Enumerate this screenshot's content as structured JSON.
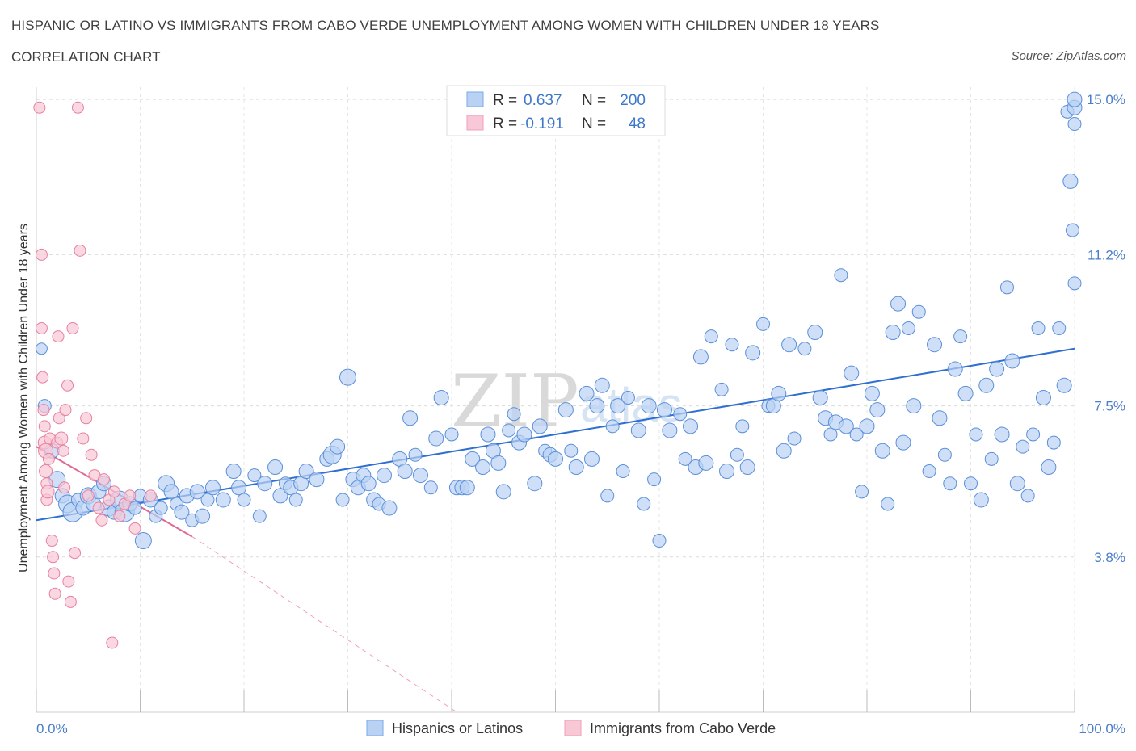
{
  "header": {
    "title": "HISPANIC OR LATINO VS IMMIGRANTS FROM CABO VERDE UNEMPLOYMENT AMONG WOMEN WITH CHILDREN UNDER 18 YEARS",
    "subtitle": "CORRELATION CHART",
    "source": "Source: ZipAtlas.com"
  },
  "watermark": {
    "zip": "ZIP",
    "atlas": "atlas"
  },
  "legend": {
    "r_label": "R =",
    "n_label": "N =",
    "series": [
      {
        "r": "0.637",
        "n": "200",
        "color": "#7aaae8",
        "fill": "#b9d1f3"
      },
      {
        "r": "-0.191",
        "n": "48",
        "color": "#f0a0b8",
        "fill": "#f8c8d6"
      }
    ]
  },
  "chart_data": {
    "type": "scatter",
    "title": "HISPANIC OR LATINO VS IMMIGRANTS FROM CABO VERDE UNEMPLOYMENT AMONG WOMEN WITH CHILDREN UNDER 18 YEARS",
    "xlabel": "",
    "ylabel": "Unemployment Among Women with Children Under 18 years",
    "x_tick_labels": [
      "0.0%",
      "100.0%"
    ],
    "y_tick_labels": [
      "3.8%",
      "7.5%",
      "11.2%",
      "15.0%"
    ],
    "y_ticks": [
      3.8,
      7.5,
      11.2,
      15.0
    ],
    "xlim": [
      0,
      100
    ],
    "ylim": [
      0,
      15.3
    ],
    "grid": true,
    "legend_placement": "bottom",
    "series": [
      {
        "name": "Hispanics or Latinos",
        "color": "#5b8fd9",
        "fill": "#b9d1f3",
        "trend": {
          "x0": 0,
          "y0": 4.7,
          "x1": 100,
          "y1": 8.9
        },
        "points": [
          [
            0.5,
            8.9,
            7
          ],
          [
            0.8,
            7.5,
            8
          ],
          [
            1.5,
            6.4,
            9
          ],
          [
            2,
            5.7,
            10
          ],
          [
            2.5,
            5.3,
            9
          ],
          [
            3,
            5.1,
            11
          ],
          [
            3.5,
            4.9,
            12
          ],
          [
            4,
            5.2,
            8
          ],
          [
            4.5,
            5.0,
            9
          ],
          [
            5,
            5.3,
            10
          ],
          [
            5.5,
            5.1,
            9
          ],
          [
            6,
            5.4,
            9
          ],
          [
            6.5,
            5.6,
            9
          ],
          [
            7,
            5.0,
            10
          ],
          [
            7.5,
            4.9,
            9
          ],
          [
            8,
            5.2,
            11
          ],
          [
            8.5,
            4.9,
            12
          ],
          [
            9,
            5.1,
            9
          ],
          [
            9.5,
            5.0,
            8
          ],
          [
            10,
            5.3,
            8
          ],
          [
            10.3,
            4.2,
            10
          ],
          [
            11,
            5.2,
            9
          ],
          [
            11.5,
            4.8,
            8
          ],
          [
            12,
            5.0,
            8
          ],
          [
            12.5,
            5.6,
            10
          ],
          [
            13,
            5.4,
            9
          ],
          [
            13.5,
            5.1,
            8
          ],
          [
            14,
            4.9,
            9
          ],
          [
            14.5,
            5.3,
            9
          ],
          [
            15,
            4.7,
            8
          ],
          [
            15.5,
            5.4,
            9
          ],
          [
            16,
            4.8,
            9
          ],
          [
            16.5,
            5.2,
            8
          ],
          [
            17,
            5.5,
            9
          ],
          [
            18,
            5.2,
            9
          ],
          [
            19,
            5.9,
            9
          ],
          [
            19.5,
            5.5,
            9
          ],
          [
            20,
            5.2,
            8
          ],
          [
            21,
            5.8,
            8
          ],
          [
            21.5,
            4.8,
            8
          ],
          [
            22,
            5.6,
            9
          ],
          [
            23,
            6.0,
            9
          ],
          [
            23.5,
            5.3,
            9
          ],
          [
            24,
            5.6,
            8
          ],
          [
            24.5,
            5.5,
            9
          ],
          [
            25,
            5.2,
            8
          ],
          [
            25.5,
            5.6,
            9
          ],
          [
            26,
            5.9,
            9
          ],
          [
            27,
            5.7,
            9
          ],
          [
            28,
            6.2,
            9
          ],
          [
            28.5,
            6.3,
            11
          ],
          [
            29,
            6.5,
            9
          ],
          [
            29.5,
            5.2,
            8
          ],
          [
            30,
            8.2,
            10
          ],
          [
            30.5,
            5.7,
            9
          ],
          [
            31,
            5.5,
            9
          ],
          [
            31.5,
            5.8,
            9
          ],
          [
            32,
            5.6,
            9
          ],
          [
            32.5,
            5.2,
            9
          ],
          [
            33,
            5.1,
            8
          ],
          [
            33.5,
            5.8,
            9
          ],
          [
            34,
            5.0,
            9
          ],
          [
            35,
            6.2,
            9
          ],
          [
            35.5,
            5.9,
            9
          ],
          [
            36,
            7.2,
            9
          ],
          [
            36.5,
            6.3,
            8
          ],
          [
            37,
            5.8,
            9
          ],
          [
            38,
            5.5,
            8
          ],
          [
            38.5,
            6.7,
            9
          ],
          [
            39,
            7.7,
            9
          ],
          [
            40,
            6.8,
            8
          ],
          [
            40.5,
            5.5,
            9
          ],
          [
            41,
            5.5,
            9
          ],
          [
            41.5,
            5.5,
            9
          ],
          [
            42,
            6.2,
            9
          ],
          [
            43,
            6.0,
            9
          ],
          [
            43.5,
            6.8,
            9
          ],
          [
            44,
            6.4,
            9
          ],
          [
            44.5,
            6.1,
            9
          ],
          [
            45,
            5.4,
            9
          ],
          [
            45.5,
            6.9,
            8
          ],
          [
            46,
            7.3,
            8
          ],
          [
            46.5,
            6.6,
            9
          ],
          [
            47,
            6.8,
            9
          ],
          [
            48,
            5.6,
            9
          ],
          [
            48.5,
            7.0,
            9
          ],
          [
            49,
            6.4,
            8
          ],
          [
            49.5,
            6.3,
            9
          ],
          [
            50,
            6.2,
            9
          ],
          [
            51,
            7.4,
            9
          ],
          [
            51.5,
            6.4,
            8
          ],
          [
            52,
            6.0,
            9
          ],
          [
            53,
            7.8,
            9
          ],
          [
            53.5,
            6.2,
            9
          ],
          [
            54,
            7.5,
            9
          ],
          [
            54.5,
            8.0,
            9
          ],
          [
            55,
            5.3,
            8
          ],
          [
            55.5,
            7.0,
            8
          ],
          [
            56,
            7.5,
            9
          ],
          [
            56.5,
            5.9,
            8
          ],
          [
            57,
            7.7,
            8
          ],
          [
            58,
            6.9,
            9
          ],
          [
            58.5,
            5.1,
            8
          ],
          [
            59,
            7.5,
            9
          ],
          [
            59.5,
            5.7,
            8
          ],
          [
            60,
            4.2,
            8
          ],
          [
            60.5,
            7.4,
            9
          ],
          [
            61,
            6.9,
            9
          ],
          [
            62,
            7.3,
            8
          ],
          [
            62.5,
            6.2,
            8
          ],
          [
            63,
            7.0,
            9
          ],
          [
            63.5,
            6.0,
            9
          ],
          [
            64,
            8.7,
            9
          ],
          [
            64.5,
            6.1,
            9
          ],
          [
            65,
            9.2,
            8
          ],
          [
            66,
            7.9,
            8
          ],
          [
            66.5,
            5.9,
            9
          ],
          [
            67,
            9.0,
            8
          ],
          [
            67.5,
            6.3,
            8
          ],
          [
            68,
            7.0,
            8
          ],
          [
            68.5,
            6.0,
            9
          ],
          [
            69,
            8.8,
            9
          ],
          [
            70,
            9.5,
            8
          ],
          [
            70.5,
            7.5,
            8
          ],
          [
            71,
            7.5,
            9
          ],
          [
            71.5,
            7.8,
            9
          ],
          [
            72,
            6.4,
            9
          ],
          [
            72.5,
            9.0,
            9
          ],
          [
            73,
            6.7,
            8
          ],
          [
            74,
            8.9,
            8
          ],
          [
            75,
            9.3,
            9
          ],
          [
            75.5,
            7.7,
            9
          ],
          [
            76,
            7.2,
            9
          ],
          [
            76.5,
            6.8,
            8
          ],
          [
            77,
            7.1,
            9
          ],
          [
            77.5,
            10.7,
            8
          ],
          [
            78,
            7.0,
            9
          ],
          [
            78.5,
            8.3,
            9
          ],
          [
            79,
            6.8,
            8
          ],
          [
            79.5,
            5.4,
            8
          ],
          [
            80,
            7.0,
            9
          ],
          [
            80.5,
            7.8,
            9
          ],
          [
            81,
            7.4,
            9
          ],
          [
            81.5,
            6.4,
            9
          ],
          [
            82,
            5.1,
            8
          ],
          [
            82.5,
            9.3,
            9
          ],
          [
            83,
            10.0,
            9
          ],
          [
            83.5,
            6.6,
            9
          ],
          [
            84,
            9.4,
            8
          ],
          [
            84.5,
            7.5,
            9
          ],
          [
            85,
            9.8,
            8
          ],
          [
            86,
            5.9,
            8
          ],
          [
            86.5,
            9.0,
            9
          ],
          [
            87,
            7.2,
            9
          ],
          [
            87.5,
            6.3,
            8
          ],
          [
            88,
            5.6,
            8
          ],
          [
            88.5,
            8.4,
            9
          ],
          [
            89,
            9.2,
            8
          ],
          [
            89.5,
            7.8,
            9
          ],
          [
            90,
            5.6,
            8
          ],
          [
            90.5,
            6.8,
            8
          ],
          [
            91,
            5.2,
            9
          ],
          [
            91.5,
            8.0,
            9
          ],
          [
            92,
            6.2,
            8
          ],
          [
            92.5,
            8.4,
            9
          ],
          [
            93,
            6.8,
            9
          ],
          [
            93.5,
            10.4,
            8
          ],
          [
            94,
            8.6,
            9
          ],
          [
            94.5,
            5.6,
            9
          ],
          [
            95,
            6.5,
            8
          ],
          [
            95.5,
            5.3,
            8
          ],
          [
            96,
            6.8,
            8
          ],
          [
            96.5,
            9.4,
            8
          ],
          [
            97,
            7.7,
            9
          ],
          [
            97.5,
            6.0,
            9
          ],
          [
            98,
            6.6,
            8
          ],
          [
            98.5,
            9.4,
            8
          ],
          [
            99,
            8.0,
            9
          ],
          [
            99.3,
            14.7,
            8
          ],
          [
            99.6,
            13.0,
            9
          ],
          [
            99.8,
            11.8,
            8
          ],
          [
            100,
            10.5,
            8
          ],
          [
            100,
            14.4,
            8
          ],
          [
            100,
            14.8,
            9
          ],
          [
            100,
            15.0,
            9
          ]
        ]
      },
      {
        "name": "Immigrants from Cabo Verde",
        "color": "#e8809f",
        "fill": "#f8c8d6",
        "trend": {
          "x0": 0,
          "y0": 6.5,
          "x1": 15,
          "y1": 4.3
        },
        "trend_ext": {
          "x0": 15,
          "y0": 4.3,
          "x1": 40.5,
          "y1": 0
        },
        "points": [
          [
            0.3,
            14.8,
            7
          ],
          [
            0.5,
            11.2,
            7
          ],
          [
            0.5,
            9.4,
            7
          ],
          [
            0.6,
            8.2,
            7
          ],
          [
            0.7,
            7.4,
            7
          ],
          [
            0.8,
            7.0,
            7
          ],
          [
            0.8,
            6.6,
            8
          ],
          [
            0.9,
            6.4,
            9
          ],
          [
            0.9,
            5.9,
            8
          ],
          [
            1.0,
            5.6,
            7
          ],
          [
            1.0,
            5.2,
            7
          ],
          [
            1.1,
            5.4,
            8
          ],
          [
            1.2,
            6.2,
            7
          ],
          [
            1.3,
            6.7,
            7
          ],
          [
            1.5,
            4.2,
            7
          ],
          [
            1.6,
            3.8,
            7
          ],
          [
            1.7,
            3.4,
            7
          ],
          [
            1.8,
            2.9,
            7
          ],
          [
            2.0,
            6.6,
            7
          ],
          [
            2.1,
            9.2,
            7
          ],
          [
            2.2,
            7.2,
            7
          ],
          [
            2.4,
            6.7,
            8
          ],
          [
            2.6,
            6.4,
            7
          ],
          [
            2.7,
            5.5,
            7
          ],
          [
            2.8,
            7.4,
            7
          ],
          [
            3.0,
            8.0,
            7
          ],
          [
            3.1,
            3.2,
            7
          ],
          [
            3.3,
            2.7,
            7
          ],
          [
            3.5,
            9.4,
            7
          ],
          [
            3.7,
            3.9,
            7
          ],
          [
            4.0,
            14.8,
            7
          ],
          [
            4.2,
            11.3,
            7
          ],
          [
            4.5,
            6.7,
            7
          ],
          [
            4.8,
            7.2,
            7
          ],
          [
            5.0,
            5.3,
            7
          ],
          [
            5.3,
            6.3,
            7
          ],
          [
            5.6,
            5.8,
            7
          ],
          [
            6.0,
            5.0,
            7
          ],
          [
            6.3,
            4.7,
            7
          ],
          [
            6.5,
            5.7,
            7
          ],
          [
            7.0,
            5.2,
            7
          ],
          [
            7.3,
            1.7,
            7
          ],
          [
            7.5,
            5.4,
            7
          ],
          [
            8.0,
            4.8,
            7
          ],
          [
            8.5,
            5.1,
            7
          ],
          [
            9.0,
            5.3,
            7
          ],
          [
            9.5,
            4.5,
            7
          ],
          [
            11.0,
            5.3,
            7
          ]
        ]
      }
    ]
  },
  "bottom_legend": [
    "Hispanics or Latinos",
    "Immigrants from Cabo Verde"
  ]
}
